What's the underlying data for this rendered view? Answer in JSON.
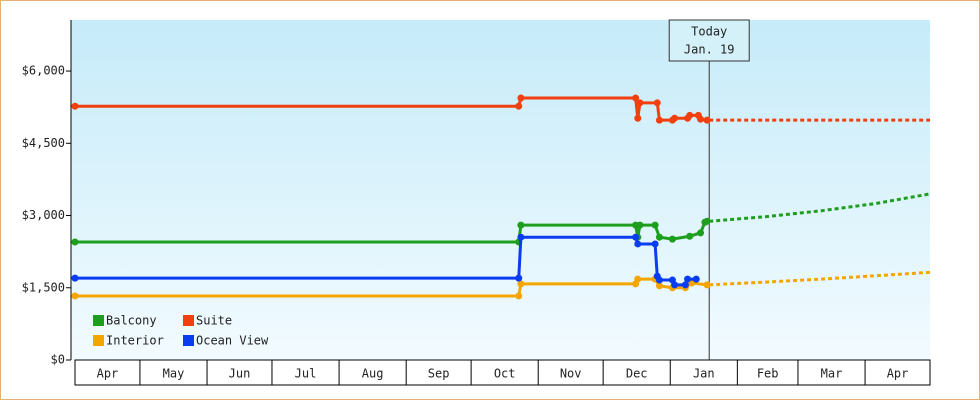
{
  "chart_data": {
    "type": "line",
    "xlim": [
      0,
      395
    ],
    "xticks": [
      {
        "value": 0,
        "label": "Apr"
      },
      {
        "value": 30,
        "label": "May"
      },
      {
        "value": 61,
        "label": "Jun"
      },
      {
        "value": 91,
        "label": "Jul"
      },
      {
        "value": 122,
        "label": "Aug"
      },
      {
        "value": 153,
        "label": "Sep"
      },
      {
        "value": 183,
        "label": "Oct"
      },
      {
        "value": 214,
        "label": "Nov"
      },
      {
        "value": 244,
        "label": "Dec"
      },
      {
        "value": 275,
        "label": "Jan"
      },
      {
        "value": 306,
        "label": "Feb"
      },
      {
        "value": 334,
        "label": "Mar"
      },
      {
        "value": 365,
        "label": "Apr"
      }
    ],
    "ylim": [
      0,
      7060
    ],
    "yticks": [
      {
        "value": 0,
        "label": "$0"
      },
      {
        "value": 1500,
        "label": "$1,500"
      },
      {
        "value": 3000,
        "label": "$3,000"
      },
      {
        "value": 4500,
        "label": "$4,500"
      },
      {
        "value": 6000,
        "label": "$6,000"
      }
    ],
    "legend": "bottom-left",
    "annotation": {
      "x": 293,
      "lines": [
        "Today",
        "Jan. 19"
      ]
    },
    "series": [
      {
        "name": "Balcony",
        "color": "#1e9e1e",
        "x": [
          0,
          205,
          206,
          259,
          260,
          261,
          268,
          270,
          276,
          284,
          289,
          291,
          292
        ],
        "values": [
          2450,
          2450,
          2800,
          2800,
          2550,
          2800,
          2800,
          2550,
          2510,
          2570,
          2640,
          2860,
          2880
        ],
        "forecast_x": [
          293,
          320,
          345,
          370,
          395
        ],
        "forecast_values": [
          2880,
          2980,
          3100,
          3250,
          3450
        ]
      },
      {
        "name": "Suite",
        "color": "#f04010",
        "x": [
          0,
          205,
          206,
          259,
          260,
          261,
          269,
          270,
          276,
          277,
          283,
          284,
          288,
          289,
          292
        ],
        "values": [
          5270,
          5270,
          5440,
          5440,
          5020,
          5340,
          5340,
          4980,
          4980,
          5020,
          5020,
          5080,
          5080,
          5000,
          4980
        ],
        "forecast_x": [
          293,
          395
        ],
        "forecast_values": [
          4980,
          4980
        ]
      },
      {
        "name": "Interior",
        "color": "#f5a500",
        "x": [
          0,
          205,
          206,
          259,
          260,
          268,
          270,
          276,
          282,
          285,
          292
        ],
        "values": [
          1330,
          1330,
          1580,
          1580,
          1680,
          1680,
          1540,
          1500,
          1500,
          1600,
          1560
        ],
        "forecast_x": [
          293,
          320,
          345,
          370,
          395
        ],
        "forecast_values": [
          1560,
          1620,
          1680,
          1750,
          1820
        ]
      },
      {
        "name": "Ocean View",
        "color": "#0a3cf0",
        "x": [
          0,
          205,
          206,
          259,
          260,
          268,
          269,
          270,
          276,
          277,
          282,
          283,
          287
        ],
        "values": [
          1700,
          1700,
          2550,
          2550,
          2410,
          2410,
          1740,
          1660,
          1660,
          1560,
          1560,
          1680,
          1680
        ]
      }
    ]
  }
}
